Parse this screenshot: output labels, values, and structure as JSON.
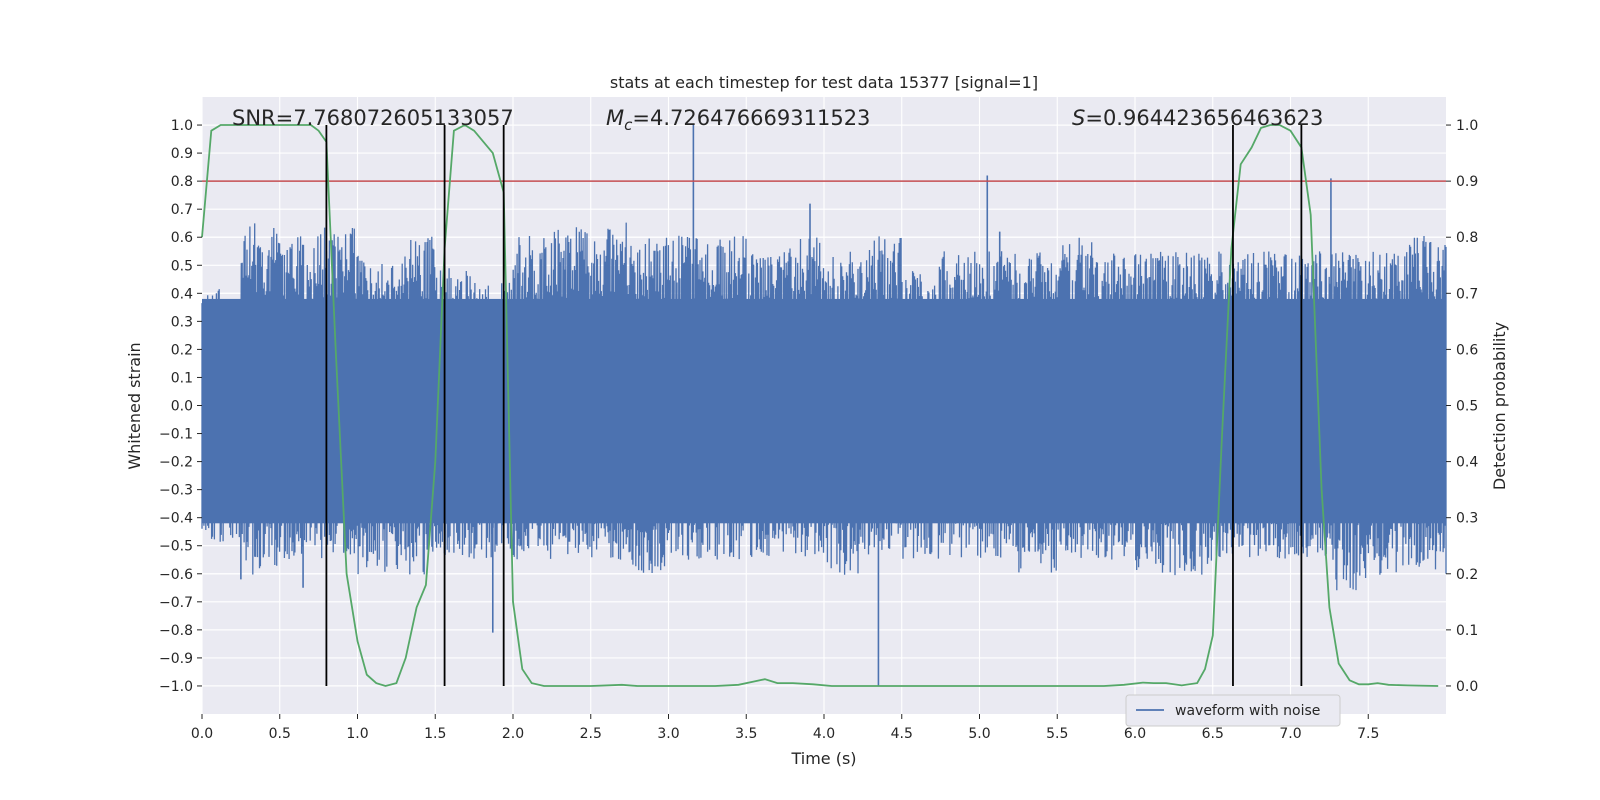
{
  "chart_data": {
    "type": "line",
    "title": "stats at each timestep for test data 15377 [signal=1]",
    "xlabel": "Time (s)",
    "ylabel_left": "Whitened strain",
    "ylabel_right": "Detection probability",
    "xlim": [
      0.0,
      8.0
    ],
    "ylim_left": [
      -1.1,
      1.1
    ],
    "ylim_right": [
      -0.05,
      1.05
    ],
    "x_ticks": [
      0.0,
      0.5,
      1.0,
      1.5,
      2.0,
      2.5,
      3.0,
      3.5,
      4.0,
      4.5,
      5.0,
      5.5,
      6.0,
      6.5,
      7.0,
      7.5
    ],
    "x_tick_labels": [
      "0.0",
      "0.5",
      "1.0",
      "1.5",
      "2.0",
      "2.5",
      "3.0",
      "3.5",
      "4.0",
      "4.5",
      "5.0",
      "5.5",
      "6.0",
      "6.5",
      "7.0",
      "7.5"
    ],
    "y_left_ticks": [
      -1.0,
      -0.9,
      -0.8,
      -0.7,
      -0.6,
      -0.5,
      -0.4,
      -0.3,
      -0.2,
      -0.1,
      0.0,
      0.1,
      0.2,
      0.3,
      0.4,
      0.5,
      0.6,
      0.7,
      0.8,
      0.9,
      1.0
    ],
    "y_left_tick_labels": [
      "−1.0",
      "−0.9",
      "−0.8",
      "−0.7",
      "−0.6",
      "−0.5",
      "−0.4",
      "−0.3",
      "−0.2",
      "−0.1",
      "0.0",
      "0.1",
      "0.2",
      "0.3",
      "0.4",
      "0.5",
      "0.6",
      "0.7",
      "0.8",
      "0.9",
      "1.0"
    ],
    "y_right_ticks": [
      0.0,
      0.1,
      0.2,
      0.3,
      0.4,
      0.5,
      0.6,
      0.7,
      0.8,
      0.9,
      1.0
    ],
    "y_right_tick_labels": [
      "0.0",
      "0.1",
      "0.2",
      "0.3",
      "0.4",
      "0.5",
      "0.6",
      "0.7",
      "0.8",
      "0.9",
      "1.0"
    ],
    "annotations": {
      "snr": "SNR=7.768072605133057",
      "mc_symbol": "M",
      "mc_sub": "c",
      "mc_value": "=4.726476669311523",
      "s_symbol": "S",
      "s_value": "=0.964423656463623"
    },
    "threshold": {
      "value": 0.9,
      "color": "#c44e52"
    },
    "vertical_lines": {
      "x": [
        0.8,
        1.56,
        1.94,
        6.63,
        7.07
      ],
      "y_range": [
        -1.0,
        1.0
      ],
      "color": "#000000"
    },
    "legend": {
      "label": "waveform with noise",
      "placement": "lower-right"
    },
    "series": [
      {
        "name": "waveform with noise",
        "axis": "left",
        "color": "#4c72b0",
        "envelope_upper": [
          0.38,
          0.6,
          0.55,
          0.58,
          0.5,
          0.55,
          0.45,
          0.4,
          0.55,
          0.58,
          0.6,
          0.55,
          0.55,
          0.55,
          0.5,
          0.55,
          0.5,
          0.55,
          0.45,
          0.5,
          0.5,
          0.5,
          0.55,
          0.5,
          0.5,
          0.5,
          0.5,
          0.5,
          0.5,
          0.5,
          0.5,
          0.55
        ],
        "envelope_lower": [
          -0.45,
          -0.55,
          -0.5,
          -0.5,
          -0.55,
          -0.55,
          -0.5,
          -0.5,
          -0.5,
          -0.5,
          -0.5,
          -0.55,
          -0.5,
          -0.5,
          -0.5,
          -0.5,
          -0.55,
          -0.5,
          -0.5,
          -0.5,
          -0.5,
          -0.55,
          -0.5,
          -0.5,
          -0.55,
          -0.55,
          -0.5,
          -0.5,
          -0.5,
          -0.6,
          -0.55,
          -0.55
        ],
        "spikes": [
          [
            0.25,
            -0.62
          ],
          [
            0.65,
            -0.65
          ],
          [
            1.87,
            -0.81
          ],
          [
            3.16,
            1.0
          ],
          [
            4.35,
            -1.0
          ],
          [
            5.05,
            0.82
          ],
          [
            7.26,
            0.81
          ],
          [
            3.91,
            0.72
          ],
          [
            5.13,
            0.62
          ]
        ]
      },
      {
        "name": "Detection probability",
        "axis": "right",
        "color": "#55a868",
        "x": [
          0.0,
          0.06,
          0.12,
          0.2,
          0.3,
          0.5,
          0.7,
          0.75,
          0.8,
          0.86,
          0.93,
          1.0,
          1.06,
          1.12,
          1.18,
          1.25,
          1.31,
          1.38,
          1.44,
          1.5,
          1.56,
          1.62,
          1.69,
          1.75,
          1.81,
          1.87,
          1.94,
          2.0,
          2.06,
          2.12,
          2.2,
          2.3,
          2.5,
          2.7,
          2.8,
          3.0,
          3.3,
          3.45,
          3.55,
          3.62,
          3.7,
          3.8,
          3.93,
          4.05,
          4.2,
          4.4,
          4.6,
          5.0,
          5.2,
          5.4,
          5.8,
          5.93,
          6.05,
          6.12,
          6.2,
          6.3,
          6.4,
          6.45,
          6.5,
          6.56,
          6.62,
          6.68,
          6.75,
          6.81,
          6.87,
          6.93,
          7.0,
          7.07,
          7.13,
          7.2,
          7.25,
          7.31,
          7.38,
          7.44,
          7.5,
          7.56,
          7.63,
          7.75,
          7.95
        ],
        "y": [
          0.8,
          0.99,
          1.0,
          1.0,
          1.0,
          1.0,
          1.0,
          0.99,
          0.97,
          0.6,
          0.2,
          0.08,
          0.02,
          0.005,
          0.0,
          0.005,
          0.05,
          0.14,
          0.18,
          0.4,
          0.78,
          0.99,
          1.0,
          0.99,
          0.97,
          0.95,
          0.88,
          0.15,
          0.03,
          0.005,
          0.0,
          0.0,
          0.0,
          0.002,
          0.0,
          0.0,
          0.0,
          0.002,
          0.008,
          0.012,
          0.005,
          0.005,
          0.003,
          0.0,
          0.0,
          0.0,
          0.0,
          0.0,
          0.0,
          0.0,
          0.0,
          0.002,
          0.006,
          0.005,
          0.005,
          0.001,
          0.005,
          0.03,
          0.09,
          0.45,
          0.78,
          0.93,
          0.96,
          0.995,
          1.0,
          1.0,
          0.99,
          0.96,
          0.84,
          0.35,
          0.14,
          0.04,
          0.01,
          0.003,
          0.003,
          0.005,
          0.002,
          0.001,
          0.0
        ]
      }
    ]
  }
}
